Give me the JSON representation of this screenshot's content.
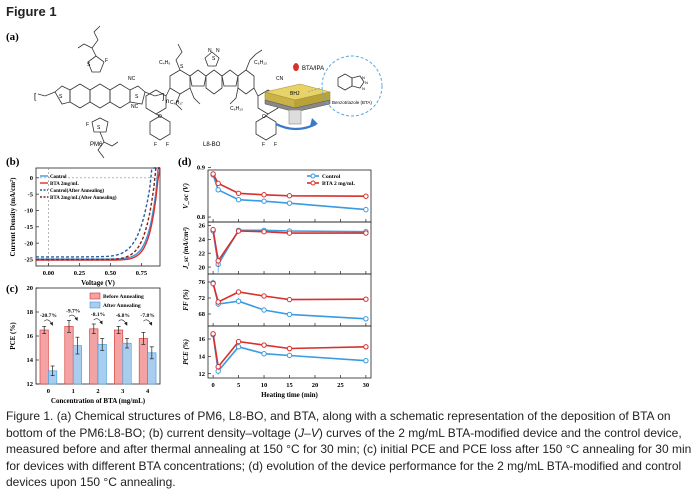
{
  "figure_title": "Figure 1",
  "panel_a": {
    "label": "(a)",
    "pm6_label": "PM6",
    "l8bo_label": "L8-BO",
    "process_label": "BTA/IPA",
    "layer_label": "BHJ",
    "molecule_label": "Benzotriazole (BTA)"
  },
  "caption": {
    "prefix": "Figure 1. (a) Chemical structures of PM6, L8-BO, and BTA, along with a schematic representation of the deposition of BTA on bottom of the PM6:L8-BO; (b) current density–voltage (",
    "jv": "J–V",
    "suffix": ") curves of the 2 mg/mL BTA-modified device and the control device, measured before and after thermal annealing at 150 °C for 30 min; (c) initial PCE and PCE loss after 150 °C annealing for 30 min for devices with different BTA concentrations; (d) evolution of the device performance for the 2 mg/mL BTA-modified and control devices upon 150 °C annealing."
  },
  "colors": {
    "control": "#3a9be0",
    "bta": "#d8302c",
    "control_dark": "#2a5f9e",
    "bta_dark": "#8a1f1a",
    "bar_before": "#f3a3a3",
    "bar_after": "#a9cdee"
  },
  "chart_data": [
    {
      "panel": "(b)",
      "type": "line",
      "xlabel": "Voltage (V)",
      "ylabel": "Current Density (mA/cm²)",
      "xlim": [
        -0.1,
        0.9
      ],
      "ylim": [
        -27,
        3
      ],
      "xticks": [
        "0.00",
        "0.25",
        "0.50",
        "0.75"
      ],
      "xtick_values": [
        0,
        0.25,
        0.5,
        0.75
      ],
      "yticks": [
        "0",
        "-5",
        "-10",
        "-15",
        "-20",
        "-25"
      ],
      "ytick_values": [
        0,
        -5,
        -10,
        -15,
        -20,
        -25
      ],
      "series": [
        {
          "name": "Control",
          "jsc": -24.9,
          "voc": 0.88,
          "n": 1.55,
          "dash": false
        },
        {
          "name": "BTA 2mg/mL",
          "jsc": -25.2,
          "voc": 0.885,
          "n": 1.45,
          "dash": false
        },
        {
          "name": "Control(After Annealing)",
          "jsc": -24.2,
          "voc": 0.83,
          "n": 2.2,
          "dash": true
        },
        {
          "name": "BTA 2mg/mL(After Annealing)",
          "jsc": -25.0,
          "voc": 0.86,
          "n": 1.8,
          "dash": true
        }
      ]
    },
    {
      "panel": "(c)",
      "type": "bar",
      "xlabel": "Concentration of BTA (mg/mL)",
      "ylabel": "PCE (%)",
      "categories": [
        "0",
        "1",
        "2",
        "3",
        "4"
      ],
      "ylim": [
        12,
        20
      ],
      "yticks": [
        "12",
        "14",
        "16",
        "18",
        "20"
      ],
      "ytick_values": [
        12,
        14,
        16,
        18,
        20
      ],
      "series": [
        {
          "name": "Before Annealing",
          "values": [
            16.5,
            16.8,
            16.6,
            16.5,
            15.8
          ],
          "errors": [
            0.3,
            0.5,
            0.4,
            0.3,
            0.5
          ]
        },
        {
          "name": "After Annealing",
          "values": [
            13.1,
            15.2,
            15.3,
            15.4,
            14.6
          ],
          "errors": [
            0.4,
            0.7,
            0.5,
            0.4,
            0.5
          ]
        }
      ],
      "annotations": [
        "-20.7%",
        "-9.7%",
        "-8.1%",
        "-6.8%",
        "-7.8%"
      ]
    },
    {
      "panel": "(d)",
      "type": "line",
      "xlabel": "Heating time (min)",
      "x": [
        0,
        1,
        5,
        10,
        15,
        30
      ],
      "xlim": [
        -1,
        31
      ],
      "xticks": [
        "0",
        "5",
        "10",
        "15",
        "20",
        "25",
        "30"
      ],
      "xtick_values": [
        0,
        5,
        10,
        15,
        20,
        25,
        30
      ],
      "legend": [
        "Control",
        "BTA 2 mg/mL"
      ],
      "subplots": [
        {
          "ylabel": "V_oc (V)",
          "ylim": [
            0.79,
            0.895
          ],
          "yticks": [
            "0.8",
            "0.9"
          ],
          "ytick_values": [
            0.8,
            0.9
          ],
          "control": [
            0.885,
            0.855,
            0.835,
            0.832,
            0.828,
            0.815
          ],
          "control_err": [
            0.004,
            0.004,
            0.003,
            0.003,
            0.003,
            0.003
          ],
          "bta": [
            0.887,
            0.868,
            0.848,
            0.845,
            0.843,
            0.842
          ],
          "bta_err": [
            0.004,
            0.004,
            0.003,
            0.003,
            0.003,
            0.003
          ]
        },
        {
          "ylabel": "J_sc (mA/cm²)",
          "ylim": [
            19,
            26.5
          ],
          "yticks": [
            "20",
            "22",
            "24",
            "26"
          ],
          "ytick_values": [
            20,
            22,
            24,
            26
          ],
          "control": [
            25.2,
            20.4,
            25.3,
            25.3,
            25.2,
            25.1
          ],
          "control_err": [
            0.3,
            1.2,
            0.3,
            0.3,
            0.3,
            0.3
          ],
          "bta": [
            25.4,
            20.9,
            25.2,
            25.1,
            24.9,
            24.9
          ],
          "bta_err": [
            0.3,
            0.8,
            0.3,
            0.3,
            0.3,
            0.3
          ]
        },
        {
          "ylabel": "FF (%)",
          "ylim": [
            65,
            78
          ],
          "yticks": [
            "68",
            "72",
            "76"
          ],
          "ytick_values": [
            68,
            72,
            76
          ],
          "control": [
            75.8,
            70.5,
            71.2,
            69.0,
            67.9,
            66.8
          ],
          "control_err": [
            0.8,
            0.8,
            0.8,
            0.6,
            0.6,
            0.5
          ],
          "bta": [
            75.6,
            71.0,
            73.5,
            72.5,
            71.6,
            71.7
          ],
          "bta_err": [
            0.8,
            0.8,
            0.6,
            0.6,
            0.6,
            0.5
          ]
        },
        {
          "ylabel": "PCE (%)",
          "ylim": [
            11.5,
            17.5
          ],
          "yticks": [
            "12",
            "14",
            "16"
          ],
          "ytick_values": [
            12,
            14,
            16
          ],
          "control": [
            16.5,
            12.3,
            15.1,
            14.3,
            14.1,
            13.5
          ],
          "control_err": [
            0.3,
            0.4,
            0.3,
            0.3,
            0.3,
            0.3
          ],
          "bta": [
            16.6,
            12.8,
            15.7,
            15.3,
            14.9,
            15.1
          ],
          "bta_err": [
            0.3,
            0.4,
            0.3,
            0.3,
            0.3,
            0.3
          ]
        }
      ]
    }
  ]
}
